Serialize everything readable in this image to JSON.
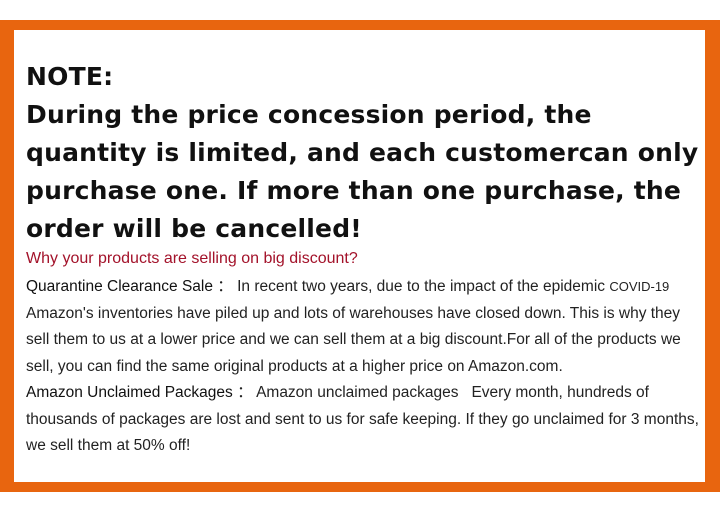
{
  "frame_color": "#e8650f",
  "note": {
    "heading": "NOTE:",
    "text": "During the price concession period, the quantity is limited, and each customercan only purchase one. If more than one purchase, the order will be cancelled!"
  },
  "why": {
    "title": "Why your products are selling on big discount?",
    "title_color": "#a3122a"
  },
  "sections": [
    {
      "label": "Quarantine Clearance Sale",
      "separator": "：",
      "text": "In recent two years, due to the impact of the epidemic ",
      "small": "COVID-19",
      "text2": " Amazon's inventories have piled up and lots of warehouses have closed down. This is why they sell them to us at a lower price and we can sell them at a big discount.For all of the products we sell, you can find the same original products at a higher price on Amazon.com."
    },
    {
      "label": "Amazon Unclaimed Packages",
      "separator": "：",
      "text": "Amazon unclaimed packages   Every month, hundreds of thousands of packages are lost and sent to us for safe keeping. If they go unclaimed for 3 months, we sell them at 50% off!"
    }
  ]
}
